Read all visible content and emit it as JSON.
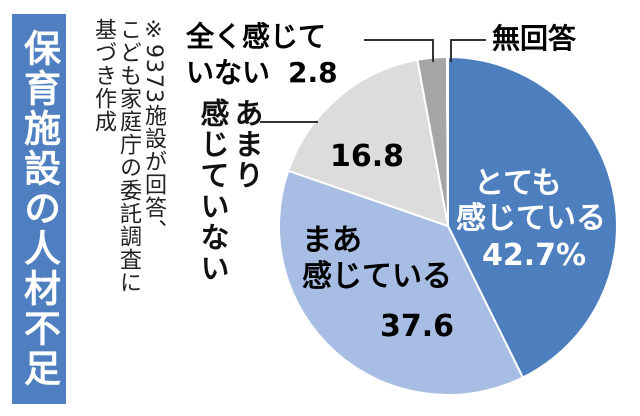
{
  "title": "保育施設の人材不足",
  "note": {
    "line1": "※9373施設が回答、",
    "line2": "こども家庭庁の委託調査に",
    "line3": "基づき作成"
  },
  "colors": {
    "title_bg": "#4f7fc1",
    "slice_totemo": "#4d7fbf",
    "slice_maa": "#a8bde3",
    "slice_amari": "#dcdcdc",
    "slice_mattaku": "#a6a6a6",
    "slice_mukaito": "#6e6e6e"
  },
  "chart_data": {
    "type": "pie",
    "title": "保育施設の人材不足",
    "unit": "%",
    "slices": [
      {
        "label": "とても感じている",
        "label_line1": "とても",
        "label_line2": "感じている",
        "value": 42.7,
        "value_text": "42.7%"
      },
      {
        "label": "まあ感じている",
        "label_line1": "まあ",
        "label_line2": "感じている",
        "value": 37.6,
        "value_text": "37.6"
      },
      {
        "label": "あまり感じていない",
        "label_line1": "あまり",
        "label_line2": "感じていない",
        "value": 16.8,
        "value_text": "16.8"
      },
      {
        "label": "全く感じていない",
        "label_line1": "全く感じて",
        "label_line2": "いない",
        "value": 2.8,
        "value_text": "2.8"
      },
      {
        "label": "無回答",
        "value": 0.1,
        "value_text": ""
      }
    ]
  }
}
